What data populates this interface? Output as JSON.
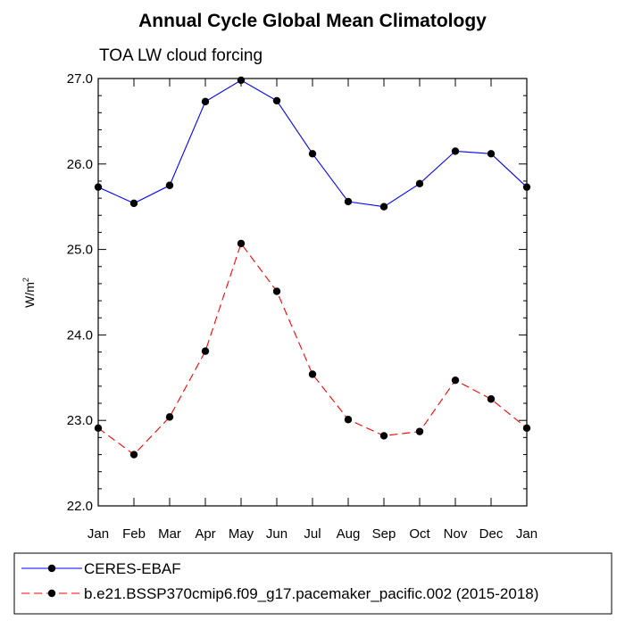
{
  "chart_data": {
    "type": "line",
    "title": "Annual Cycle Global Mean Climatology",
    "subtitle": "TOA LW cloud forcing",
    "ylabel": "W/m",
    "ylabel_superscript": "2",
    "xlabel": "",
    "categories": [
      "Jan",
      "Feb",
      "Mar",
      "Apr",
      "May",
      "Jun",
      "Jul",
      "Aug",
      "Sep",
      "Oct",
      "Nov",
      "Dec",
      "Jan"
    ],
    "ylim": [
      22.0,
      27.0
    ],
    "yticks": [
      "22.0",
      "23.0",
      "24.0",
      "25.0",
      "26.0",
      "27.0"
    ],
    "grid": false,
    "legend_position": "bottom",
    "series": [
      {
        "name": "CERES-EBAF",
        "color": "#0000ff",
        "dash": "solid",
        "values": [
          25.73,
          25.54,
          25.75,
          26.73,
          26.98,
          26.74,
          26.12,
          25.56,
          25.5,
          25.77,
          26.15,
          26.12,
          25.73
        ]
      },
      {
        "name": "b.e21.BSSP370cmip6.f09_g17.pacemaker_pacific.002 (2015-2018)",
        "color": "#ff0000",
        "dash": "dashed",
        "values": [
          22.91,
          22.6,
          23.04,
          23.81,
          25.07,
          24.51,
          23.54,
          23.01,
          22.82,
          22.87,
          23.47,
          23.25,
          22.91
        ]
      }
    ]
  }
}
